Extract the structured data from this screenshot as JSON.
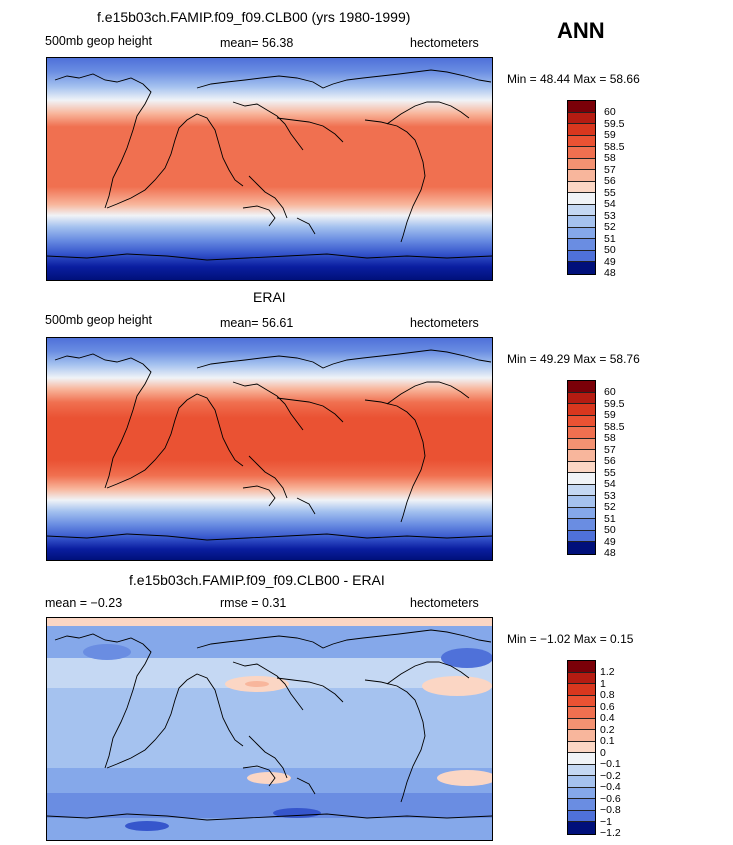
{
  "season": "ANN",
  "colors": {
    "full": [
      "#7a0008",
      "#b51c12",
      "#d9371e",
      "#ea5233",
      "#f07050",
      "#f49272",
      "#f8b69c",
      "#fbd6c4",
      "#f0f3f7",
      "#c5d8f3",
      "#a5c2ef",
      "#85a8ea",
      "#6a8de2",
      "#4f71d9",
      "#3656cc",
      "#2240b8",
      "#0a1ea0",
      "#00107a"
    ],
    "diff": [
      "#7a0008",
      "#b51c12",
      "#d9371e",
      "#ea5233",
      "#f07050",
      "#f49272",
      "#f8b69c",
      "#fbd6c4",
      "#f0f3f7",
      "#c5d8f3",
      "#a5c2ef",
      "#85a8ea",
      "#6a8de2",
      "#4f71d9",
      "#3656cc",
      "#2240b8",
      "#0a1ea0",
      "#00107a"
    ]
  },
  "panels": [
    {
      "title": "f.e15b03ch.FAMIP.f09_f09.CLB00 (yrs 1980-1999)",
      "left": "500mb geop height",
      "center": "mean=  56.38",
      "right": "hectometers",
      "minmax": "Min =  48.44  Max =  58.66",
      "levels": [
        "60",
        "59.5",
        "59",
        "58.5",
        "58",
        "57",
        "56",
        "55",
        "54",
        "53",
        "52",
        "51",
        "50",
        "49",
        "48"
      ]
    },
    {
      "title": "ERAI",
      "left": "500mb geop height",
      "center": "mean=  56.61",
      "right": "hectometers",
      "minmax": "Min =  49.29  Max =  58.76",
      "levels": [
        "60",
        "59.5",
        "59",
        "58.5",
        "58",
        "57",
        "56",
        "55",
        "54",
        "53",
        "52",
        "51",
        "50",
        "49",
        "48"
      ]
    },
    {
      "title": "f.e15b03ch.FAMIP.f09_f09.CLB00 - ERAI",
      "left": "mean =  −0.23",
      "center": "rmse =   0.31",
      "right": "hectometers",
      "minmax": "Min =  −1.02  Max =   0.15",
      "levels": [
        "1.2",
        "1",
        "0.8",
        "0.6",
        "0.4",
        "0.2",
        "0.1",
        "0",
        "−0.1",
        "−0.2",
        "−0.4",
        "−0.6",
        "−0.8",
        "−1",
        "−1.2"
      ]
    }
  ]
}
